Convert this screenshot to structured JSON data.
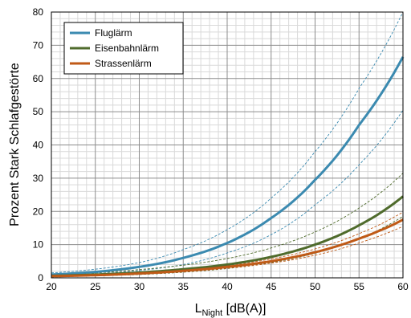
{
  "chart_data": {
    "type": "line",
    "xlabel_main": "L",
    "xlabel_sub": "Night",
    "xlabel_rest": " [dB(A)]",
    "ylabel": "Prozent Stark Schlafgestörte",
    "xlim": [
      20,
      60
    ],
    "ylim": [
      0,
      80
    ],
    "x_ticks": [
      "20",
      "25",
      "30",
      "35",
      "40",
      "45",
      "50",
      "55",
      "60"
    ],
    "y_ticks": [
      "0",
      "10",
      "20",
      "30",
      "40",
      "50",
      "60",
      "70",
      "80"
    ],
    "grid": true,
    "minor_grid": true,
    "legend_position": "top-left",
    "x": [
      20,
      25,
      30,
      35,
      40,
      45,
      50,
      55,
      60
    ],
    "series": [
      {
        "name": "Fluglärm",
        "color": "#3b8ab0",
        "values": [
          1.0,
          1.8,
          3.3,
          6.0,
          10.5,
          18.0,
          29.5,
          46.0,
          66.5
        ],
        "ci_lower": [
          0.6,
          1.2,
          2.2,
          4.0,
          7.5,
          13.0,
          22.0,
          34.0,
          50.5
        ],
        "ci_upper": [
          1.5,
          2.6,
          4.6,
          8.5,
          14.5,
          24.0,
          38.0,
          57.0,
          80.0
        ]
      },
      {
        "name": "Eisenbahnlärm",
        "color": "#4f6b2c",
        "values": [
          0.6,
          1.0,
          1.6,
          2.6,
          4.0,
          6.3,
          10.0,
          15.8,
          24.5
        ],
        "ci_lower": [
          0.3,
          0.6,
          1.0,
          1.7,
          2.8,
          4.6,
          7.4,
          11.8,
          18.5
        ],
        "ci_upper": [
          0.9,
          1.5,
          2.5,
          3.8,
          5.8,
          9.0,
          13.8,
          21.0,
          31.5
        ]
      },
      {
        "name": "Strassenlärm",
        "color": "#c05a17",
        "values": [
          0.5,
          0.8,
          1.3,
          2.1,
          3.3,
          5.0,
          7.7,
          11.8,
          17.5
        ],
        "ci_lower": [
          0.4,
          0.7,
          1.1,
          1.8,
          2.9,
          4.4,
          6.8,
          10.5,
          15.5
        ],
        "ci_upper": [
          0.6,
          0.9,
          1.5,
          2.4,
          3.7,
          5.7,
          8.7,
          13.3,
          19.8
        ]
      }
    ]
  }
}
